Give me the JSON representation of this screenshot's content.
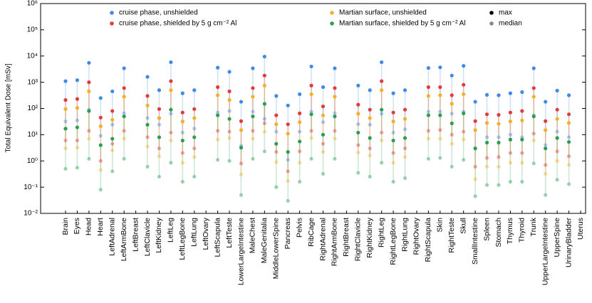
{
  "chart_data": {
    "type": "dot-range",
    "y_label": "Total Equivalent Dose [mSv]",
    "log_y": true,
    "ylim": [
      0.01,
      1000000
    ],
    "yticks": [
      {
        "value": 0.01,
        "label": "10⁻²"
      },
      {
        "value": 0.1,
        "label": "10⁻¹"
      },
      {
        "value": 1,
        "label": "10⁰"
      },
      {
        "value": 10,
        "label": "10¹"
      },
      {
        "value": 100,
        "label": "10²"
      },
      {
        "value": 1000,
        "label": "10³"
      },
      {
        "value": 10000,
        "label": "10⁴"
      },
      {
        "value": 100000,
        "label": "10⁵"
      },
      {
        "value": 1000000,
        "label": "10⁶"
      }
    ],
    "categories": [
      "Brain",
      "Eyes",
      "Head",
      "Heart",
      "LeftAdrenal",
      "LeftArmBone",
      "LeftBreast",
      "LeftClavicle",
      "LeftKidney",
      "LeftLeg",
      "LeftLegBone",
      "LeftLung",
      "LeftOvary",
      "LeftScapula",
      "LeftTeste",
      "LowerLargeIntestine",
      "MaleChest",
      "MaleGenitalia",
      "MiddleLowerSpine",
      "Pancreas",
      "Pelvis",
      "RibCage",
      "RightAdrenal",
      "RightArmBone",
      "RightBreast",
      "RightClavicle",
      "RightKidney",
      "RightLeg",
      "RightLegBone",
      "RightLung",
      "RightOvary",
      "RightScapula",
      "Skin",
      "RightTeste",
      "Skull",
      "SmallIntestine",
      "Spleen",
      "Stomach",
      "Thymus",
      "Thyroid",
      "Trunk",
      "UpperLargeIntestine",
      "UpperSpine",
      "UrinaryBladder",
      "Uterus"
    ],
    "series": [
      {
        "name": "cruise phase, unshielded",
        "color": "#3d8ae8",
        "max": [
          1100,
          1200,
          5500,
          250,
          450,
          3400,
          null,
          1600,
          500,
          5800,
          380,
          500,
          null,
          3600,
          2500,
          180,
          3400,
          9500,
          300,
          130,
          350,
          4000,
          650,
          3400,
          null,
          750,
          500,
          5800,
          380,
          500,
          null,
          3500,
          3700,
          1800,
          4200,
          180,
          330,
          320,
          380,
          420,
          3400,
          180,
          480,
          320,
          null
        ],
        "median": [
          32,
          35,
          90,
          9,
          24,
          66,
          null,
          43,
          24,
          63,
          12,
          17,
          null,
          70,
          80,
          3.8,
          75,
          40,
          13,
          1.1,
          13,
          75,
          30,
          66,
          null,
          25,
          24,
          63,
          12,
          16,
          null,
          75,
          75,
          63,
          75,
          3,
          8,
          8,
          10,
          8,
          55,
          4,
          13,
          8,
          null
        ]
      },
      {
        "name": "cruise phase, shielded by 5 g cm⁻² Al",
        "color": "#e23b3b",
        "max": [
          210,
          230,
          1000,
          45,
          80,
          600,
          null,
          300,
          95,
          1100,
          70,
          95,
          null,
          650,
          450,
          33,
          600,
          1800,
          55,
          25,
          65,
          750,
          120,
          600,
          null,
          140,
          90,
          1100,
          70,
          90,
          null,
          650,
          650,
          320,
          800,
          33,
          60,
          57,
          70,
          80,
          600,
          33,
          90,
          60,
          null
        ],
        "median": [
          6,
          6,
          14,
          1,
          4.5,
          14,
          null,
          8,
          3,
          12,
          2,
          3,
          null,
          14,
          13,
          0.8,
          14,
          27,
          2.2,
          0.4,
          2.3,
          14,
          4.5,
          14,
          null,
          4,
          3,
          12,
          2,
          3,
          null,
          14,
          15,
          10,
          13,
          0.6,
          1.3,
          1.4,
          2,
          2,
          11,
          0.7,
          2.3,
          1.5,
          null
        ]
      },
      {
        "name": "Martian surface, unshielded",
        "color": "#f2b127",
        "max": [
          95,
          105,
          450,
          21,
          37,
          280,
          null,
          130,
          43,
          500,
          32,
          43,
          null,
          320,
          210,
          15,
          280,
          750,
          25,
          11,
          30,
          350,
          55,
          280,
          null,
          63,
          43,
          500,
          32,
          40,
          null,
          300,
          320,
          150,
          350,
          15,
          28,
          26,
          32,
          35,
          280,
          15,
          40,
          28,
          null
        ],
        "median": [
          3,
          3.2,
          7,
          0.45,
          2.5,
          7,
          null,
          3.5,
          1.5,
          6,
          0.85,
          1.4,
          null,
          6.5,
          7.5,
          0.3,
          7,
          13,
          0.9,
          0.17,
          0.85,
          7.5,
          2.2,
          7,
          null,
          2.1,
          1.6,
          6,
          0.85,
          1.4,
          null,
          7,
          7,
          4.5,
          6.5,
          0.2,
          0.6,
          0.6,
          0.85,
          0.85,
          6,
          0.32,
          1,
          0.7,
          null
        ]
      },
      {
        "name": "Martian surface, shielded by 5 g cm⁻² Al",
        "color": "#2a9e55",
        "max": [
          17,
          19,
          80,
          4,
          7,
          50,
          null,
          24,
          8,
          90,
          6,
          8,
          null,
          55,
          40,
          3.2,
          50,
          150,
          4.5,
          2.2,
          5.5,
          60,
          10,
          50,
          null,
          12,
          7.5,
          90,
          6,
          7.5,
          null,
          55,
          55,
          27,
          65,
          3,
          5,
          5,
          6.5,
          6.5,
          50,
          3,
          7.5,
          5.3,
          null
        ],
        "median": [
          0.5,
          0.55,
          1.2,
          0.08,
          0.4,
          1.2,
          null,
          0.6,
          0.25,
          0.85,
          0.16,
          0.25,
          null,
          1.1,
          1,
          0.05,
          1.2,
          2.3,
          0.1,
          0.03,
          0.16,
          1.2,
          0.32,
          1.2,
          null,
          0.35,
          0.25,
          0.85,
          0.16,
          0.22,
          null,
          1.2,
          1.3,
          0.6,
          1.1,
          0.045,
          0.12,
          0.12,
          0.16,
          0.16,
          0.8,
          0.05,
          0.19,
          0.13,
          null
        ]
      }
    ],
    "legend_markers": [
      {
        "name": "max",
        "color": "#000000"
      },
      {
        "name": "median",
        "color": "#888888"
      }
    ],
    "median_opacity": 0.45
  }
}
